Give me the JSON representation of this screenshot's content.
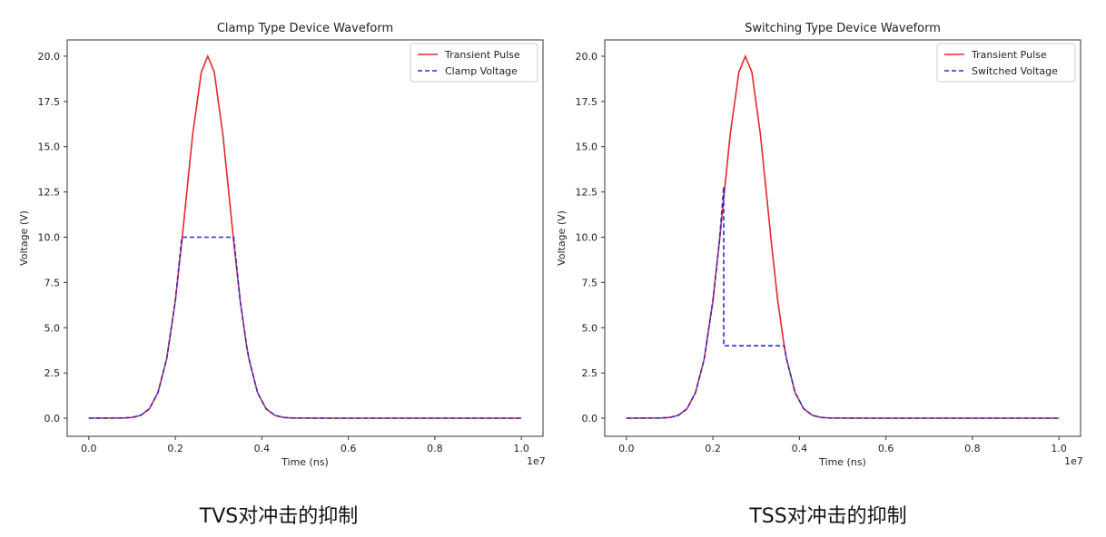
{
  "chart_data": [
    {
      "type": "line",
      "title": "Clamp Type Device Waveform",
      "xlabel": "Time (ns)",
      "ylabel": "Voltage (V)",
      "x_offset_label": "1e7",
      "xlim": [
        -0.05,
        1.05
      ],
      "ylim": [
        -1.0,
        20.9
      ],
      "xticks": [
        "0.0",
        "0.2",
        "0.4",
        "0.6",
        "0.8",
        "1.0"
      ],
      "yticks": [
        "0.0",
        "2.5",
        "5.0",
        "7.5",
        "10.0",
        "12.5",
        "15.0",
        "17.5",
        "20.0"
      ],
      "legend_position": "top-right",
      "grid": false,
      "caption": "TVS对冲击的抑制",
      "series": [
        {
          "name": "Transient Pulse",
          "color": "#e8262a",
          "style": "solid",
          "x": [
            0,
            0.08,
            0.1,
            0.12,
            0.14,
            0.16,
            0.18,
            0.2,
            0.215,
            0.225,
            0.24,
            0.26,
            0.275,
            0.29,
            0.31,
            0.325,
            0.335,
            0.35,
            0.365,
            0.37,
            0.39,
            0.41,
            0.43,
            0.45,
            0.47,
            0.55,
            1.0
          ],
          "y": [
            0,
            0.01,
            0.04,
            0.16,
            0.52,
            1.42,
            3.29,
            6.49,
            9.74,
            12.13,
            15.65,
            19.12,
            20,
            19.12,
            15.65,
            12.13,
            9.74,
            6.49,
            3.96,
            3.29,
            1.42,
            0.52,
            0.16,
            0.04,
            0.01,
            0,
            0
          ]
        },
        {
          "name": "Clamp Voltage",
          "color": "#2b2bd9",
          "style": "dashed",
          "x": [
            0,
            0.08,
            0.1,
            0.12,
            0.14,
            0.16,
            0.18,
            0.2,
            0.215,
            0.225,
            0.24,
            0.26,
            0.275,
            0.29,
            0.31,
            0.325,
            0.335,
            0.35,
            0.365,
            0.37,
            0.39,
            0.41,
            0.43,
            0.45,
            0.47,
            0.55,
            1.0
          ],
          "y": [
            0,
            0.01,
            0.04,
            0.16,
            0.52,
            1.42,
            3.29,
            6.49,
            10,
            10,
            10,
            10,
            10,
            10,
            10,
            10,
            10,
            6.49,
            3.96,
            3.29,
            1.42,
            0.52,
            0.16,
            0.04,
            0.01,
            0,
            0
          ]
        }
      ]
    },
    {
      "type": "line",
      "title": "Switching Type Device Waveform",
      "xlabel": "Time (ns)",
      "ylabel": "Voltage (V)",
      "x_offset_label": "1e7",
      "xlim": [
        -0.05,
        1.05
      ],
      "ylim": [
        -1.0,
        20.9
      ],
      "xticks": [
        "0.0",
        "0.2",
        "0.4",
        "0.6",
        "0.8",
        "1.0"
      ],
      "yticks": [
        "0.0",
        "2.5",
        "5.0",
        "7.5",
        "10.0",
        "12.5",
        "15.0",
        "17.5",
        "20.0"
      ],
      "legend_position": "top-right",
      "grid": false,
      "caption": "TSS对冲击的抑制",
      "series": [
        {
          "name": "Transient Pulse",
          "color": "#e8262a",
          "style": "solid",
          "x": [
            0,
            0.08,
            0.1,
            0.12,
            0.14,
            0.16,
            0.18,
            0.2,
            0.215,
            0.225,
            0.24,
            0.26,
            0.275,
            0.29,
            0.31,
            0.325,
            0.335,
            0.35,
            0.365,
            0.37,
            0.39,
            0.41,
            0.43,
            0.45,
            0.47,
            0.55,
            1.0
          ],
          "y": [
            0,
            0.01,
            0.04,
            0.16,
            0.52,
            1.42,
            3.29,
            6.49,
            9.74,
            12.13,
            15.65,
            19.12,
            20,
            19.12,
            15.65,
            12.13,
            9.74,
            6.49,
            3.96,
            3.29,
            1.42,
            0.52,
            0.16,
            0.04,
            0.01,
            0,
            0
          ]
        },
        {
          "name": "Switched Voltage",
          "color": "#2b2bd9",
          "style": "dashed",
          "x": [
            0,
            0.08,
            0.1,
            0.12,
            0.14,
            0.16,
            0.18,
            0.2,
            0.215,
            0.225,
            0.225,
            0.365,
            0.37,
            0.39,
            0.41,
            0.43,
            0.45,
            0.47,
            0.55,
            1.0
          ],
          "y": [
            0,
            0.01,
            0.04,
            0.16,
            0.52,
            1.42,
            3.29,
            6.49,
            9.74,
            12.8,
            4,
            4,
            3.29,
            1.42,
            0.52,
            0.16,
            0.04,
            0.01,
            0,
            0
          ]
        }
      ]
    }
  ]
}
